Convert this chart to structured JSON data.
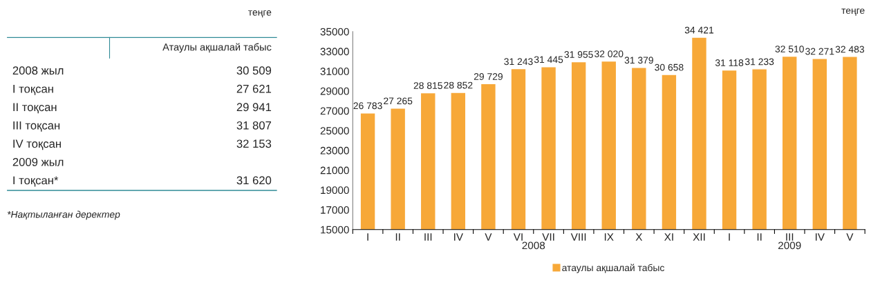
{
  "chart_data": [
    {
      "type": "other",
      "subtitle": "теңге",
      "title": "Атаулы ақшалай табыс",
      "categories": [
        "2008 жыл",
        "I тоқсан",
        "II тоқсан",
        "III тоқсан",
        "IV тоқсан",
        "2009 жыл",
        "I тоқсан*"
      ],
      "value_labels": [
        "30 509",
        "27 621",
        "29 941",
        "31 807",
        "32 153",
        null,
        "31 620"
      ],
      "annotations": [
        "*Нақтыланған деректер"
      ]
    },
    {
      "type": "bar",
      "ylabel": "теңге",
      "categories": [
        "I",
        "II",
        "III",
        "IV",
        "V",
        "VI",
        "VII",
        "VIII",
        "IX",
        "X",
        "XI",
        "XII",
        "I",
        "II",
        "III",
        "IV",
        "V"
      ],
      "series": [
        {
          "name": "атаулы ақшалай табыс",
          "color": "#f7a838",
          "values": [
            26783,
            27265,
            28815,
            28852,
            29729,
            31243,
            31445,
            31955,
            32020,
            31379,
            30658,
            34421,
            31118,
            31233,
            32510,
            32271,
            32483
          ],
          "value_labels": [
            "26 783",
            "27 265",
            "28 815",
            "28 852",
            "29 729",
            "31 243",
            "31 445",
            "31 955",
            "32 020",
            "31 379",
            "30 658",
            "34 421",
            "31 118",
            "31 233",
            "32 510",
            "32 271",
            "32 483"
          ]
        }
      ],
      "ylim": [
        15000,
        35000
      ],
      "yticks": [
        15000,
        17000,
        19000,
        21000,
        23000,
        25000,
        27000,
        29000,
        31000,
        33000,
        35000
      ],
      "annotations": [
        "2008",
        "2009"
      ],
      "legend": "bottom",
      "grid": false
    }
  ]
}
